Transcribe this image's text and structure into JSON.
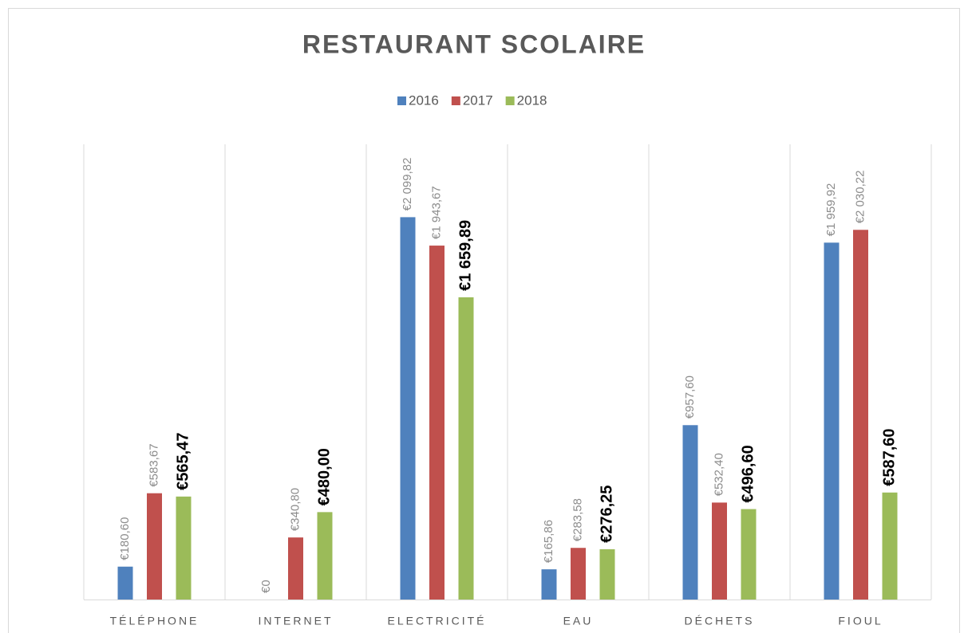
{
  "chart_data": {
    "type": "bar",
    "title": "RESTAURANT SCOLAIRE",
    "categories": [
      "TÉLÉPHONE",
      "INTERNET",
      "ELECTRICITÉ",
      "EAU",
      "DÉCHETS",
      "FIOUL"
    ],
    "series": [
      {
        "name": "2016",
        "color": "#4f81bd",
        "values": [
          180.6,
          0,
          2099.82,
          165.86,
          957.6,
          1959.92
        ],
        "value_labels": [
          "€180,60",
          "€0",
          "€2 099,82",
          "€165,86",
          "€957,60",
          "€1 959,92"
        ]
      },
      {
        "name": "2017",
        "color": "#c0504d",
        "values": [
          583.67,
          340.8,
          1943.67,
          283.58,
          532.4,
          2030.22
        ],
        "value_labels": [
          "€583,67",
          "€340,80",
          "€1 943,67",
          "€283,58",
          "€532,40",
          "€2 030,22"
        ]
      },
      {
        "name": "2018",
        "color": "#9bbb59",
        "values": [
          565.47,
          480.0,
          1659.89,
          276.25,
          496.6,
          587.6
        ],
        "value_labels": [
          "€565,47",
          "€480,00",
          "€1 659,89",
          "€276,25",
          "€496,60",
          "€587,60"
        ]
      }
    ],
    "ylim": [
      0,
      2500
    ],
    "legend": "top"
  }
}
